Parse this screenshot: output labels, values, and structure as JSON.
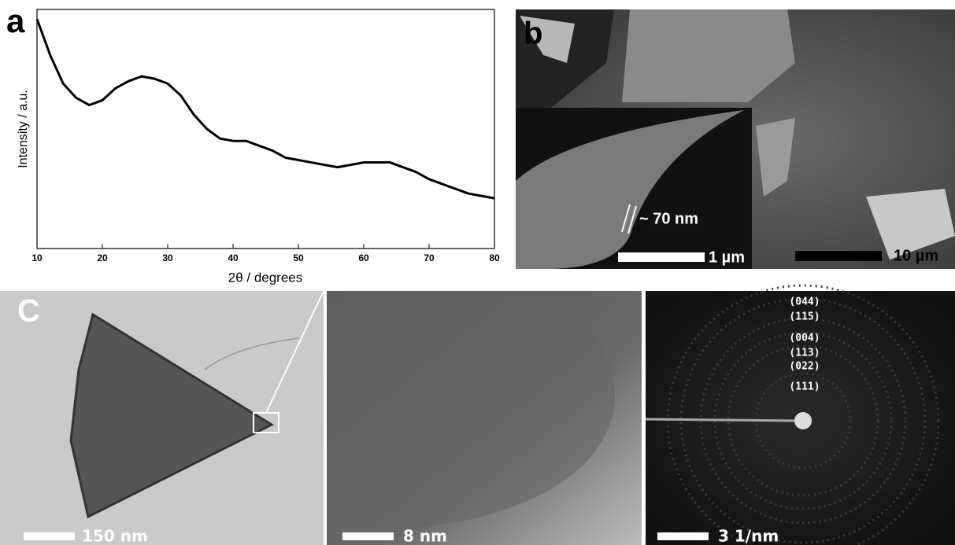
{
  "chart_data": {
    "type": "line",
    "x_label": "2θ / degrees",
    "y_label": "Intensity / a.u.",
    "x": [
      10,
      12,
      14,
      16,
      18,
      20,
      22,
      24,
      26,
      28,
      30,
      32,
      34,
      36,
      38,
      40,
      42,
      44,
      46,
      48,
      50,
      52,
      54,
      56,
      58,
      60,
      62,
      64,
      66,
      68,
      70,
      72,
      74,
      76,
      78,
      80
    ],
    "values": [
      96,
      81,
      69,
      63,
      60,
      62,
      67,
      70,
      72,
      71,
      69,
      64,
      56,
      50,
      46,
      45,
      45,
      43,
      41,
      38,
      37,
      36,
      35,
      34,
      35,
      36,
      36,
      36,
      34,
      32,
      29,
      27,
      25,
      23,
      22,
      21
    ],
    "xlim": [
      10,
      80
    ],
    "xticks": [
      10,
      20,
      30,
      40,
      50,
      60,
      70,
      80
    ],
    "ylim": [
      0,
      100
    ],
    "color": "#000000"
  },
  "panels": {
    "a": "a",
    "b": "b",
    "c": "C"
  },
  "scale_bars": {
    "b_inset": "1 µm",
    "b": "10 µm",
    "c1": "150 nm",
    "c2": "8 nm",
    "c3": "3 1/nm"
  },
  "annotations": {
    "thickness": "~ 70 nm",
    "planes": [
      "(044)",
      "(115)",
      "(004)",
      "(113)",
      "(022)",
      "(111)"
    ]
  }
}
